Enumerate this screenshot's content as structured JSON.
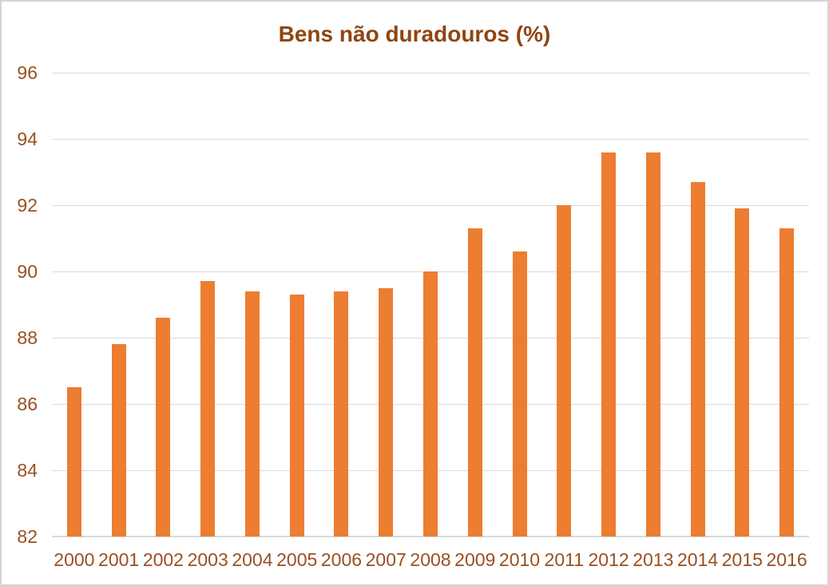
{
  "chart_data": {
    "type": "bar",
    "title": "Bens não duradouros (%)",
    "categories": [
      "2000",
      "2001",
      "2002",
      "2003",
      "2004",
      "2005",
      "2006",
      "2007",
      "2008",
      "2009",
      "2010",
      "2011",
      "2012",
      "2013",
      "2014",
      "2015",
      "2016"
    ],
    "values": [
      86.5,
      87.8,
      88.6,
      89.7,
      89.4,
      89.3,
      89.4,
      89.5,
      90.0,
      91.3,
      90.6,
      92.0,
      93.6,
      93.6,
      92.7,
      91.9,
      91.3
    ],
    "xlabel": "",
    "ylabel": "",
    "ylim": [
      82,
      96
    ],
    "yticks": [
      82,
      84,
      86,
      88,
      90,
      92,
      94,
      96
    ],
    "grid": true,
    "legend": false,
    "colors": {
      "bar": "#ED7D31",
      "title": "#8F4511",
      "tick_label": "#9A5020",
      "gridline": "#D9D9D9",
      "axis_line": "#D9D9D9",
      "border": "#D4D4D4",
      "background": "#FFFFFF"
    }
  }
}
